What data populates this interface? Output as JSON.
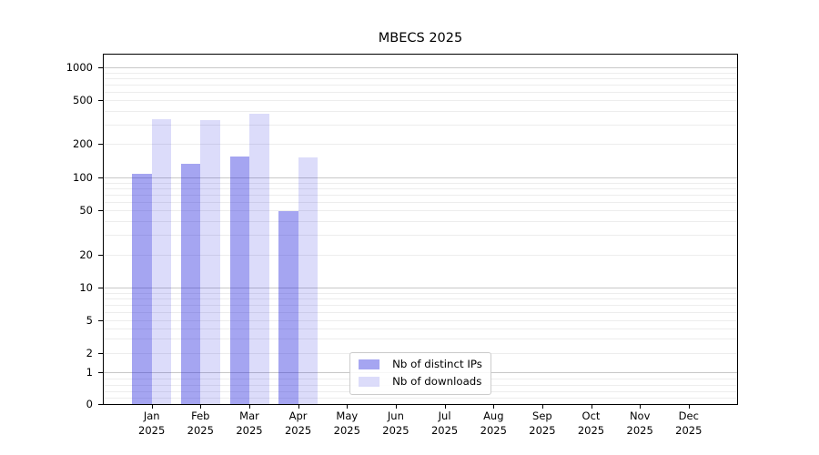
{
  "title": "MBECS 2025",
  "chart_data": {
    "type": "bar",
    "title": "MBECS 2025",
    "scale": "symlog",
    "grid": "both",
    "legend_position": "lower center",
    "categories": [
      "Jan",
      "Feb",
      "Mar",
      "Apr",
      "May",
      "Jun",
      "Jul",
      "Aug",
      "Sep",
      "Oct",
      "Nov",
      "Dec"
    ],
    "category_year": "2025",
    "y_ticks": [
      0,
      1,
      2,
      5,
      10,
      20,
      50,
      100,
      200,
      500,
      1000
    ],
    "ylim": [
      0,
      1300
    ],
    "series": [
      {
        "name": "Nb of distinct IPs",
        "color": "#a5a5f2",
        "fill": "rgba(30,30,220,0.40)",
        "values": [
          107,
          132,
          154,
          49,
          0,
          0,
          0,
          0,
          0,
          0,
          0,
          0
        ]
      },
      {
        "name": "Nb of downloads",
        "color": "#dcdcfa",
        "fill": "rgba(30,30,220,0.155)",
        "values": [
          338,
          332,
          377,
          150,
          0,
          0,
          0,
          0,
          0,
          0,
          0,
          0
        ]
      }
    ]
  }
}
